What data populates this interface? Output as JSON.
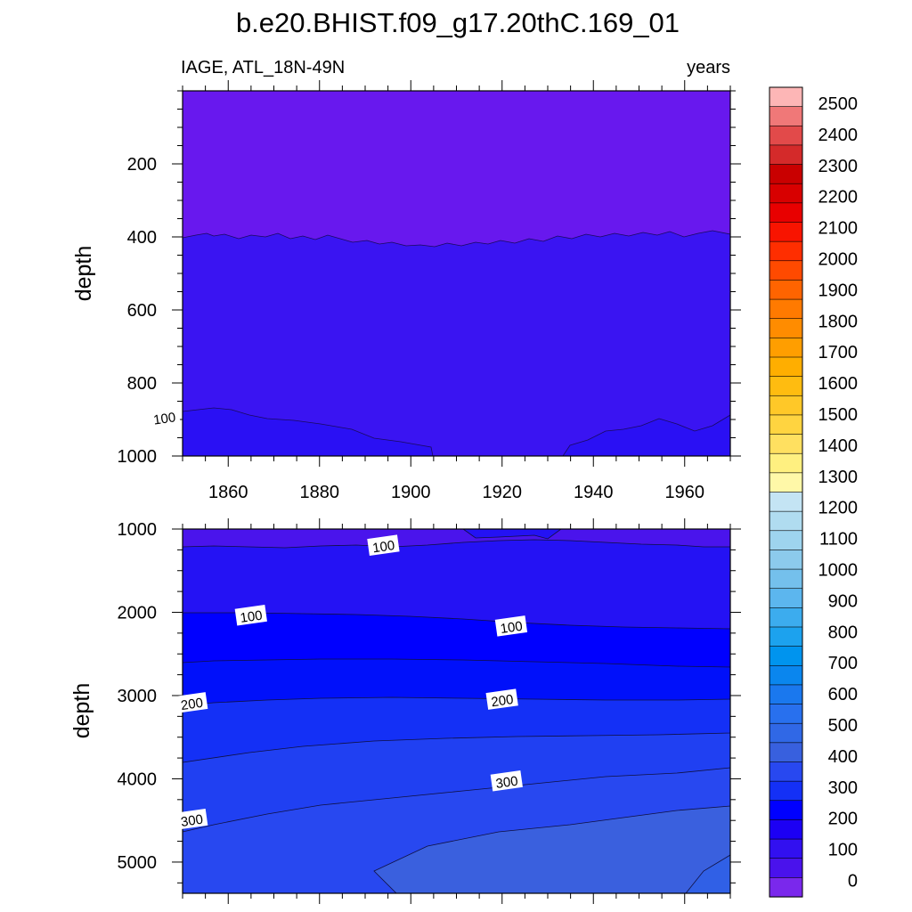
{
  "title": "b.e20.BHIST.f09_g17.20thC.169_01",
  "chart_data": [
    {
      "type": "heatmap",
      "left_label": "IAGE, ATL_18N-49N",
      "right_label": "years",
      "ylabel": "depth",
      "xlim": [
        1850,
        1970
      ],
      "ylim": [
        0,
        1000
      ],
      "x_ticks": [
        "1860",
        "1880",
        "1900",
        "1920",
        "1940",
        "1960"
      ],
      "y_ticks": [
        "200",
        "400",
        "600",
        "800",
        "1000"
      ],
      "contour_labels": [
        {
          "text": "100",
          "x": 1846,
          "y": 895
        }
      ]
    },
    {
      "type": "heatmap",
      "ylabel": "depth",
      "xlim": [
        1850,
        1970
      ],
      "ylim": [
        1000,
        5375
      ],
      "y_ticks": [
        "1000",
        "2000",
        "3000",
        "4000",
        "5000"
      ],
      "contour_labels": [
        {
          "text": "100",
          "x": 1894,
          "y": 1200
        },
        {
          "text": "100",
          "x": 1865,
          "y": 2040
        },
        {
          "text": "100",
          "x": 1922,
          "y": 2170
        },
        {
          "text": "200",
          "x": 1852,
          "y": 3090
        },
        {
          "text": "200",
          "x": 1920,
          "y": 3050
        },
        {
          "text": "300",
          "x": 1852,
          "y": 4490
        },
        {
          "text": "300",
          "x": 1921,
          "y": 4030
        }
      ]
    }
  ],
  "colorbar": {
    "labels": [
      "2500",
      "2400",
      "2300",
      "2200",
      "2100",
      "2000",
      "1900",
      "1800",
      "1700",
      "1600",
      "1500",
      "1400",
      "1300",
      "1200",
      "1100",
      "1000",
      "900",
      "800",
      "700",
      "600",
      "500",
      "400",
      "300",
      "200",
      "100",
      "0"
    ],
    "colors": [
      "#fdb6b6",
      "#f07878",
      "#e24a4a",
      "#d42a2a",
      "#c90000",
      "#d80000",
      "#e80000",
      "#f81400",
      "#ff2e00",
      "#ff4a00",
      "#ff6400",
      "#ff7a00",
      "#ff8c00",
      "#ff9e00",
      "#ffae00",
      "#ffbc10",
      "#ffc828",
      "#ffd440",
      "#ffe060",
      "#fff080",
      "#fff8a8",
      "#c4e4f4",
      "#b0dcf0",
      "#9ed4ee",
      "#8ccaec",
      "#74c0ec",
      "#5cb6ee",
      "#3cacee",
      "#1ca2ee",
      "#0094ee",
      "#0a86ee",
      "#1a78ee",
      "#2870ee",
      "#3068e6",
      "#3860de",
      "#2848f0",
      "#1430f6",
      "#0000ff",
      "#1c00f4",
      "#3210f0",
      "#4a12ec",
      "#7a28ec"
    ]
  }
}
